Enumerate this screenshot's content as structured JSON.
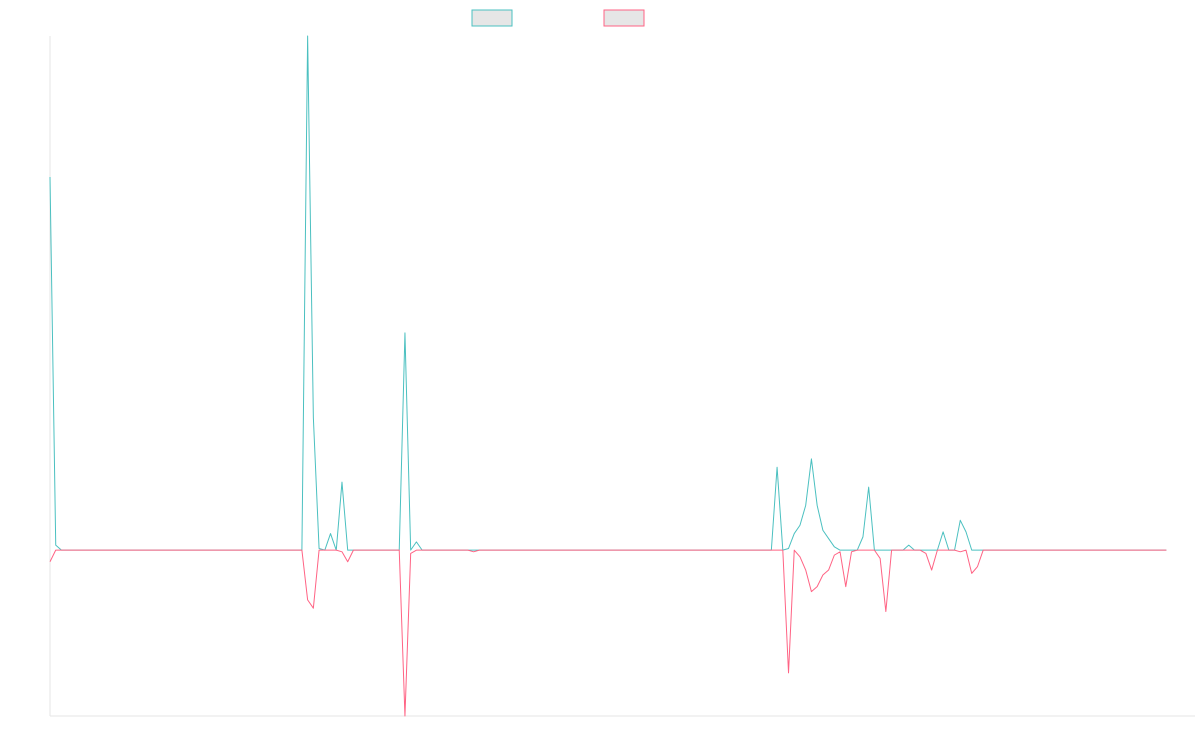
{
  "chart_data": {
    "type": "line",
    "title": "",
    "xlabel": "",
    "ylabel": "",
    "x_count": 201,
    "ylim": [
      -1,
      3.1
    ],
    "grid": false,
    "legend_position": "top-center",
    "colors": {
      "positive": "#4bc0c0",
      "negative": "#ff6384",
      "legend_fill": "#e6e6e6",
      "axis": "#e5e5e5"
    },
    "series": [
      {
        "values": [
          2.25,
          0.03,
          0,
          0,
          0,
          0,
          0,
          0,
          0,
          0,
          0,
          0,
          0,
          0,
          0,
          0,
          0,
          0,
          0,
          0,
          0,
          0,
          0,
          0,
          0,
          0,
          0,
          0,
          0,
          0,
          0,
          0,
          0,
          0,
          0,
          0,
          0,
          0,
          0,
          0,
          0,
          0,
          0,
          0,
          0,
          3.1,
          0.8,
          0.01,
          0,
          0.1,
          0,
          0.41,
          0,
          0,
          0,
          0,
          0,
          0,
          0,
          0,
          0,
          0,
          1.31,
          0,
          0.05,
          0,
          0,
          0,
          0,
          0,
          0,
          0,
          0,
          0,
          0,
          0,
          0,
          0,
          0,
          0,
          0,
          0,
          0,
          0,
          0,
          0,
          0,
          0,
          0,
          0,
          0,
          0,
          0,
          0,
          0,
          0,
          0,
          0,
          0,
          0,
          0,
          0,
          0,
          0,
          0,
          0,
          0,
          0,
          0,
          0,
          0,
          0,
          0,
          0,
          0,
          0,
          0,
          0,
          0,
          0,
          0,
          0,
          0,
          0,
          0,
          0,
          0,
          0.5,
          0,
          0.01,
          0.1,
          0.15,
          0.27,
          0.55,
          0.27,
          0.12,
          0.07,
          0.02,
          0,
          0,
          0,
          0,
          0.08,
          0.38,
          0,
          0,
          0,
          0,
          0,
          0,
          0.03,
          0,
          0,
          0,
          0,
          0,
          0.11,
          0,
          0,
          0.18,
          0.11,
          0,
          0,
          0,
          0,
          0,
          0,
          0,
          0,
          0,
          0,
          0,
          0,
          0,
          0,
          0,
          0,
          0,
          0,
          0,
          0,
          0,
          0,
          0,
          0,
          0,
          0,
          0,
          0,
          0,
          0,
          0,
          0,
          0,
          0,
          0
        ]
      },
      {
        "values": [
          -0.07,
          0,
          0,
          0,
          0,
          0,
          0,
          0,
          0,
          0,
          0,
          0,
          0,
          0,
          0,
          0,
          0,
          0,
          0,
          0,
          0,
          0,
          0,
          0,
          0,
          0,
          0,
          0,
          0,
          0,
          0,
          0,
          0,
          0,
          0,
          0,
          0,
          0,
          0,
          0,
          0,
          0,
          0,
          0,
          0,
          -0.3,
          -0.35,
          0,
          0,
          0,
          0,
          -0.01,
          -0.07,
          0,
          0,
          0,
          0,
          0,
          0,
          0,
          0,
          0,
          -1,
          -0.02,
          0,
          0,
          0,
          0,
          0,
          0,
          0,
          0,
          0,
          0,
          -0.01,
          0,
          0,
          0,
          0,
          0,
          0,
          0,
          0,
          0,
          0,
          0,
          0,
          0,
          0,
          0,
          0,
          0,
          0,
          0,
          0,
          0,
          0,
          0,
          0,
          0,
          0,
          0,
          0,
          0,
          0,
          0,
          0,
          0,
          0,
          0,
          0,
          0,
          0,
          0,
          0,
          0,
          0,
          0,
          0,
          0,
          0,
          0,
          0,
          0,
          0,
          0,
          0,
          0,
          0,
          -0.74,
          0,
          -0.04,
          -0.12,
          -0.25,
          -0.22,
          -0.15,
          -0.12,
          -0.03,
          -0.01,
          -0.22,
          -0.01,
          0,
          0,
          0,
          0,
          -0.05,
          -0.37,
          0,
          0,
          0,
          0,
          0,
          0,
          -0.02,
          -0.12,
          0,
          0,
          0,
          0,
          -0.01,
          0,
          -0.14,
          -0.1,
          0,
          0,
          0,
          0,
          0,
          0,
          0,
          0,
          0,
          0,
          0,
          0,
          0,
          0,
          0,
          0,
          0,
          0,
          0,
          0,
          0,
          0,
          0,
          0,
          0,
          0,
          0,
          0,
          0,
          0,
          0,
          0,
          0
        ]
      }
    ]
  }
}
